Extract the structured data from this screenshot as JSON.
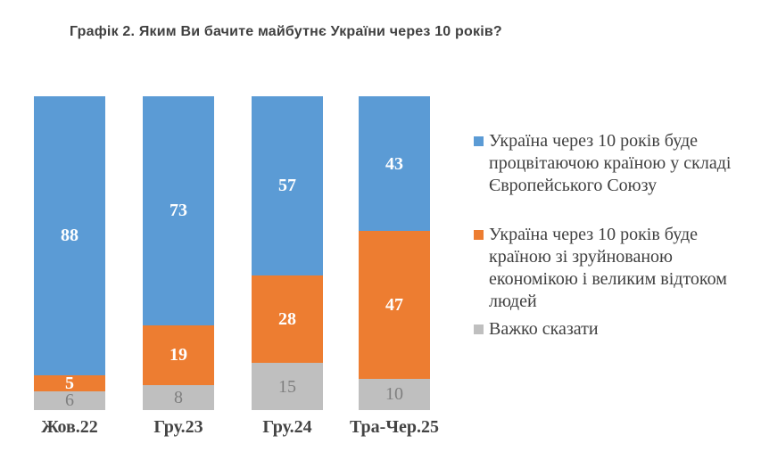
{
  "title": "Графік 2. Яким Ви бачите майбутнє України через 10 років?",
  "chart_data": {
    "type": "bar",
    "stacked": true,
    "percent_stacked": true,
    "unit": "%",
    "grid": false,
    "axes_visible": false,
    "legend_position": "right",
    "value_labels": true,
    "categories": [
      "Жов.22",
      "Гру.23",
      "Гру.24",
      "Тра-Чер.25"
    ],
    "series": [
      {
        "name": "Україна через 10 років буде процвітаючою країною у складі Європейського Союзу",
        "color": "#5B9BD5",
        "label_color": "#FFFFFF",
        "label_bold": true,
        "values": [
          88,
          73,
          57,
          43
        ]
      },
      {
        "name": "Україна через 10 років буде країною зі зруйнованою економікою і великим відтоком людей",
        "color": "#ED7D31",
        "label_color": "#FFFFFF",
        "label_bold": true,
        "values": [
          5,
          19,
          28,
          47
        ]
      },
      {
        "name": "Важко сказати",
        "color": "#BFBFBF",
        "label_color": "#7F7F7F",
        "label_bold": false,
        "values": [
          6,
          8,
          15,
          10
        ]
      }
    ]
  }
}
